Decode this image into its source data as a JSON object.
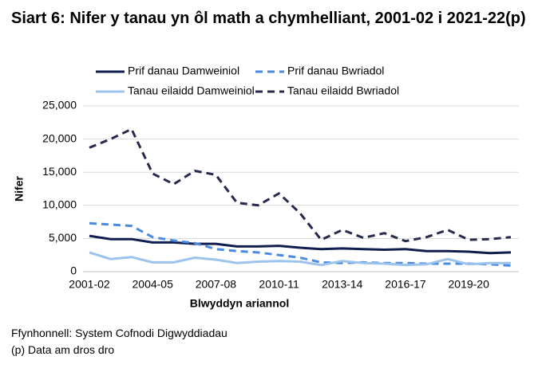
{
  "chart_data": {
    "type": "line",
    "title": "Siart 6: Nifer y tanau yn ôl math a chymhelliant, 2001-02 i 2021-22(p)",
    "xlabel": "Blwyddyn ariannol",
    "ylabel": "Nifer",
    "categories": [
      "2001-02",
      null,
      null,
      "2004-05",
      null,
      null,
      "2007-08",
      null,
      null,
      "2010-11",
      null,
      null,
      "2013-14",
      null,
      null,
      "2016-17",
      null,
      null,
      "2019-20",
      null,
      null
    ],
    "series": [
      {
        "name": "Prif danau Damweiniol",
        "color": "#0f1e4f",
        "dashed": false,
        "values": [
          5400,
          4900,
          4900,
          4400,
          4400,
          4200,
          4200,
          3800,
          3800,
          3900,
          3600,
          3400,
          3500,
          3400,
          3300,
          3400,
          3100,
          3100,
          3000,
          2800,
          2900
        ]
      },
      {
        "name": "Prif danau Bwriadol",
        "color": "#4a8ae0",
        "dashed": true,
        "values": [
          7300,
          7100,
          6900,
          5200,
          4700,
          4300,
          3400,
          3100,
          2900,
          2500,
          2100,
          1400,
          1300,
          1400,
          1300,
          1300,
          1200,
          1200,
          1200,
          1100,
          900
        ]
      },
      {
        "name": "Tanau eilaidd Damweiniol",
        "color": "#9cc3ec",
        "dashed": false,
        "values": [
          2900,
          1900,
          2200,
          1400,
          1400,
          2100,
          1800,
          1300,
          1500,
          1600,
          1500,
          1000,
          1600,
          1300,
          1200,
          1000,
          1100,
          1900,
          1100,
          1300,
          1300
        ]
      },
      {
        "name": "Tanau eilaidd Bwriadol",
        "color": "#262a4d",
        "dashed": true,
        "values": [
          18700,
          20000,
          21500,
          14800,
          13200,
          15200,
          14600,
          10400,
          10000,
          11800,
          8800,
          4800,
          6300,
          5100,
          5800,
          4600,
          5200,
          6300,
          4800,
          4900,
          5200
        ]
      }
    ],
    "ylim": [
      0,
      25000
    ],
    "yticks": [
      0,
      {
        "value": 5000,
        "label": "5,000"
      },
      {
        "value": 10000,
        "label": "10,000"
      },
      {
        "value": 15000,
        "label": "15,000"
      },
      {
        "value": 20000,
        "label": "20,000"
      },
      {
        "value": 25000,
        "label": "25,000"
      }
    ],
    "grid": true,
    "source": "Ffynhonnell: System Cofnodi Digwyddiadau",
    "note": "(p) Data am dros dro"
  }
}
